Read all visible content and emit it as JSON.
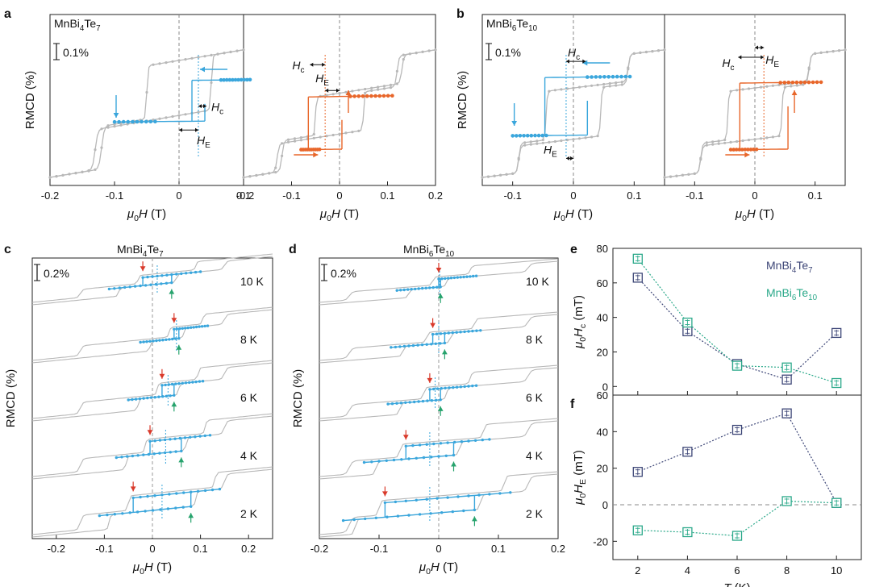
{
  "figure": {
    "panel_letters": [
      "a",
      "b",
      "c",
      "d",
      "e",
      "f"
    ],
    "materials": {
      "mnbi4te7": {
        "base": "MnBi",
        "s1": "4",
        "mid": "Te",
        "s2": "7"
      },
      "mnbi6te10": {
        "base": "MnBi",
        "s1": "6",
        "mid": "Te",
        "s2": "10"
      }
    }
  },
  "colors": {
    "gray": "#b8b8b8",
    "blue": "#3aa6dc",
    "orange": "#e8662a",
    "navy": "#3d4677",
    "teal": "#2ba98a",
    "red_arrow": "#d93a2b",
    "green_arrow": "#27a36d"
  },
  "chart_data": [
    {
      "panel": "a",
      "type": "line",
      "title": "MnBi4Te7",
      "scale_bar": "0.1%",
      "ylabel": "RMCD (%)",
      "xlabel": "μ0H (T)",
      "subpanels": [
        {
          "xlim": [
            -0.2,
            0.1
          ],
          "xticks": [
            "-0.2",
            "-0.1",
            "0",
            "0.1"
          ],
          "minor_loop_color": "blue",
          "loop": {
            "center": 0.03,
            "half_width": 0.01,
            "dist_from_zero": 0.03
          },
          "annotations": [
            "H",
            "c",
            "H",
            "E"
          ]
        },
        {
          "xlim": [
            -0.2,
            0.2
          ],
          "xticks": [
            "-0.2",
            "-0.1",
            "0",
            "0.1",
            "0.2"
          ],
          "minor_loop_color": "orange",
          "loop": {
            "center": -0.03,
            "half_width": 0.035
          },
          "annotations": [
            "H",
            "E",
            "H",
            "c"
          ]
        }
      ]
    },
    {
      "panel": "b",
      "type": "line",
      "title": "MnBi6Te10",
      "scale_bar": "0.1%",
      "ylabel": "RMCD (%)",
      "xlabel": "μ0H (T)",
      "subpanels": [
        {
          "xlim": [
            -0.15,
            0.15
          ],
          "xticks": [
            "-0.1",
            "0",
            "0.1"
          ],
          "minor_loop_color": "blue",
          "loop": {
            "center": -0.012,
            "half_width": 0.035
          },
          "annotations": [
            "H",
            "c",
            "H",
            "E"
          ]
        },
        {
          "xlim": [
            -0.15,
            0.15
          ],
          "xticks": [
            "-0.1",
            "0",
            "0.1"
          ],
          "minor_loop_color": "orange",
          "loop": {
            "center": 0.015,
            "half_width": 0.04
          },
          "annotations": [
            "H",
            "c",
            "H",
            "E"
          ]
        }
      ]
    },
    {
      "panel": "c",
      "type": "line",
      "title": "MnBi4Te7",
      "scale_bar": "0.2%",
      "ylabel": "RMCD (%)",
      "xlabel": "μ0H (T)",
      "xlim": [
        -0.25,
        0.25
      ],
      "xticks": [
        "-0.2",
        "-0.1",
        "0",
        "0.1",
        "0.2"
      ],
      "temperatures": [
        "10 K",
        "8 K",
        "6 K",
        "4 K",
        "2 K"
      ],
      "loops": [
        {
          "T": "10 K",
          "left": -0.02,
          "right": 0.04
        },
        {
          "T": "8 K",
          "left": 0.045,
          "right": 0.055
        },
        {
          "T": "6 K",
          "left": 0.02,
          "right": 0.045
        },
        {
          "T": "4 K",
          "left": -0.005,
          "right": 0.06
        },
        {
          "T": "2 K",
          "left": -0.04,
          "right": 0.08
        }
      ]
    },
    {
      "panel": "d",
      "type": "line",
      "title": "MnBi6Te10",
      "scale_bar": "0.2%",
      "ylabel": "RMCD (%)",
      "xlabel": "μ0H (T)",
      "xlim": [
        -0.2,
        0.2
      ],
      "xticks": [
        "-0.2",
        "-0.1",
        "0",
        "0.1",
        "0.2"
      ],
      "temperatures": [
        "10 K",
        "8 K",
        "6 K",
        "4 K",
        "2 K"
      ],
      "loops": [
        {
          "T": "10 K",
          "left": 0.0,
          "right": 0.003
        },
        {
          "T": "8 K",
          "left": -0.01,
          "right": 0.01
        },
        {
          "T": "6 K",
          "left": -0.015,
          "right": 0.003
        },
        {
          "T": "4 K",
          "left": -0.055,
          "right": 0.025
        },
        {
          "T": "2 K",
          "left": -0.09,
          "right": 0.06
        }
      ]
    },
    {
      "panel": "e",
      "type": "scatter",
      "ylabel": "μ0Hc (mT)",
      "xlim": [
        1,
        11
      ],
      "ylim": [
        -5,
        80
      ],
      "yticks": [
        0,
        20,
        40,
        60,
        80
      ],
      "series": [
        {
          "name": "MnBi4Te7",
          "color": "navy",
          "x": [
            2,
            4,
            6,
            8,
            10
          ],
          "y": [
            63,
            32,
            13,
            4,
            31
          ]
        },
        {
          "name": "MnBi6Te10",
          "color": "teal",
          "x": [
            2,
            4,
            6,
            8,
            10
          ],
          "y": [
            74,
            37,
            12,
            11,
            2
          ]
        }
      ]
    },
    {
      "panel": "f",
      "type": "scatter",
      "ylabel": "μ0HE (mT)",
      "xlabel": "T (K)",
      "xlim": [
        1,
        11
      ],
      "ylim": [
        -30,
        60
      ],
      "yticks": [
        -20,
        0,
        20,
        40,
        60
      ],
      "xticks": [
        2,
        4,
        6,
        8,
        10
      ],
      "series": [
        {
          "name": "MnBi4Te7",
          "color": "navy",
          "x": [
            2,
            4,
            6,
            8,
            10
          ],
          "y": [
            18,
            29,
            41,
            50,
            1
          ]
        },
        {
          "name": "MnBi6Te10",
          "color": "teal",
          "x": [
            2,
            4,
            6,
            8,
            10
          ],
          "y": [
            -14,
            -15,
            -17,
            2,
            1
          ]
        }
      ]
    }
  ]
}
